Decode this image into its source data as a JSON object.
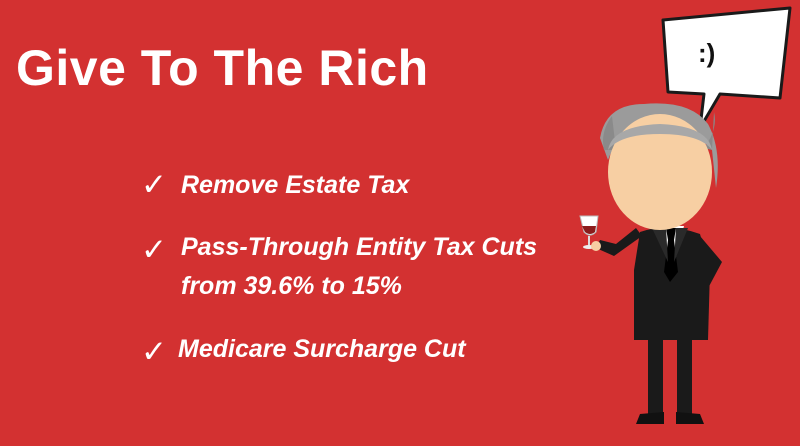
{
  "title": "Give To The Rich",
  "items": [
    {
      "line1": "Remove Estate Tax"
    },
    {
      "line1": "Pass-Through Entity Tax Cuts",
      "line2": "from 39.6% to 15%"
    },
    {
      "line1": "Medicare Surcharge Cut"
    }
  ],
  "check_glyph": "✓",
  "speech_bubble": ":)",
  "colors": {
    "background": "#d33131",
    "text": "#ffffff",
    "suit": "#1a1a1a",
    "face": "#f7cfa3",
    "hair": "#9b9b9b"
  }
}
